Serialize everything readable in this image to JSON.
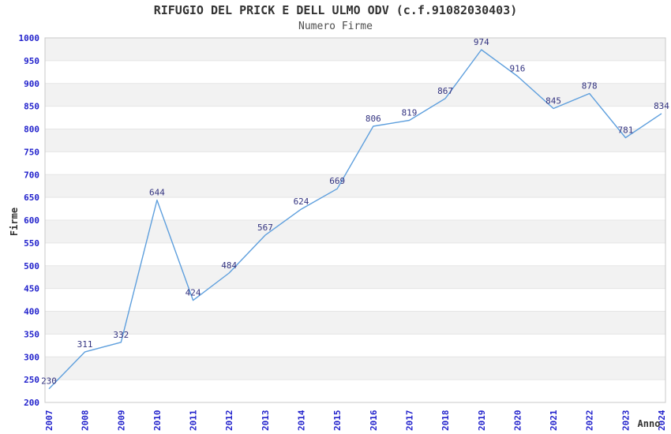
{
  "chart_data": {
    "type": "line",
    "title": "RIFUGIO DEL PRICK E DELL ULMO ODV (c.f.91082030403)",
    "subtitle": "Numero Firme",
    "xlabel": "Anno",
    "ylabel": "Firme",
    "categories": [
      "2007",
      "2008",
      "2009",
      "2010",
      "2011",
      "2012",
      "2013",
      "2014",
      "2015",
      "2016",
      "2017",
      "2018",
      "2019",
      "2020",
      "2021",
      "2022",
      "2023",
      "2024"
    ],
    "values": [
      230,
      311,
      332,
      644,
      424,
      484,
      567,
      624,
      669,
      806,
      819,
      867,
      974,
      916,
      845,
      878,
      781,
      834
    ],
    "ylim": [
      200,
      1000
    ],
    "ytick_step": 50,
    "yticks": [
      200,
      250,
      300,
      350,
      400,
      450,
      500,
      550,
      600,
      650,
      700,
      750,
      800,
      850,
      900,
      950,
      1000
    ],
    "grid": "horizontal-bands-alternating",
    "legend": "none",
    "data_labels_shown": true,
    "colors": {
      "line": "#5e9fdd",
      "tick_label": "#2222cc",
      "data_label": "#333380",
      "band_fill": "#f2f2f2",
      "gridline": "#e5e5e5",
      "plot_border": "#c9c9c9",
      "title_text": "#333333",
      "background": "#ffffff"
    }
  }
}
